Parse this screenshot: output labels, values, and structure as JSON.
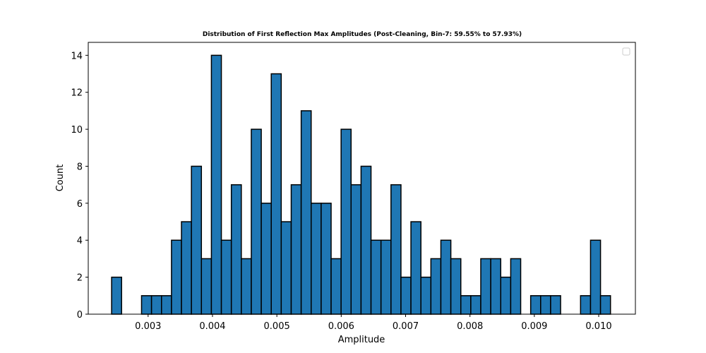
{
  "chart_data": {
    "type": "bar",
    "title": "Distribution of First Reflection Max Amplitudes (Post-Cleaning, Bin-7: 59.55% to 57.93%)",
    "xlabel": "Amplitude",
    "ylabel": "Count",
    "xlim": [
      0.00207,
      0.01057
    ],
    "ylim": [
      0,
      14.7
    ],
    "x_ticks": [
      0.003,
      0.004,
      0.005,
      0.006,
      0.007,
      0.008,
      0.009,
      0.01
    ],
    "x_tick_labels": [
      "0.003",
      "0.004",
      "0.005",
      "0.006",
      "0.007",
      "0.008",
      "0.009",
      "0.010"
    ],
    "y_ticks": [
      0,
      2,
      4,
      6,
      8,
      10,
      12,
      14
    ],
    "y_tick_labels": [
      "0",
      "2",
      "4",
      "6",
      "8",
      "10",
      "12",
      "14"
    ],
    "bin_start": 0.002433,
    "bin_width": 0.000155,
    "values": [
      2,
      0,
      0,
      1,
      1,
      1,
      4,
      5,
      8,
      3,
      14,
      4,
      7,
      3,
      10,
      6,
      13,
      5,
      7,
      11,
      6,
      6,
      3,
      10,
      7,
      8,
      4,
      4,
      7,
      2,
      5,
      2,
      3,
      4,
      3,
      1,
      1,
      3,
      3,
      2,
      3,
      0,
      1,
      1,
      1,
      0,
      0,
      1,
      4,
      1
    ],
    "bar_color": "#1f77b4",
    "edge_color": "#000000",
    "legend": {
      "placement": "upper right",
      "entries": []
    },
    "grid": false
  }
}
